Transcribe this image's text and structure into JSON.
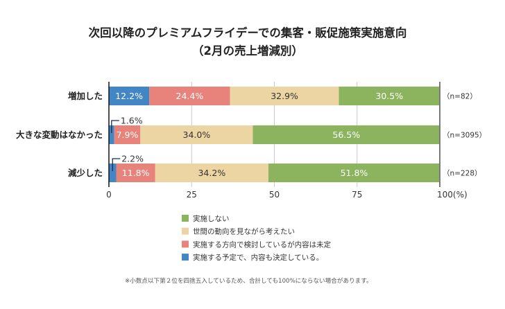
{
  "chart_data": {
    "type": "bar",
    "orientation": "horizontal",
    "stacked": true,
    "title": "次回以降のプレミアムフライデーでの集客・販促施策実施意向",
    "subtitle": "（2月の売上増減別）",
    "categories": [
      "増加した",
      "大きな変動はなかった",
      "減少した"
    ],
    "n_labels": [
      "（n=82）",
      "（n=3095）",
      "（n=228）"
    ],
    "series": [
      {
        "name": "実施する予定で、内容も決定している。",
        "color": "#4386c6",
        "label_color": "#ffffff",
        "values": [
          12.2,
          1.6,
          2.2
        ],
        "labels": [
          "12.2%",
          "1.6%",
          "2.2%"
        ]
      },
      {
        "name": "実施する方向で検討しているが内容は未定",
        "color": "#e8837b",
        "label_color": "#ffffff",
        "values": [
          24.4,
          7.9,
          11.8
        ],
        "labels": [
          "24.4%",
          "7.9%",
          "11.8%"
        ]
      },
      {
        "name": "世間の動向を見ながら考えたい",
        "color": "#ecd5a3",
        "label_color": "#333333",
        "values": [
          32.9,
          34.0,
          34.2
        ],
        "labels": [
          "32.9%",
          "34.0%",
          "34.2%"
        ]
      },
      {
        "name": "実施しない",
        "color": "#8cb35e",
        "label_color": "#ffffff",
        "values": [
          30.5,
          56.5,
          51.8
        ],
        "labels": [
          "30.5%",
          "56.5%",
          "51.8%"
        ]
      }
    ],
    "xlim": [
      0,
      100
    ],
    "xticks": [
      0,
      25,
      50,
      75,
      100
    ],
    "xtick_labels": [
      "0",
      "25",
      "50",
      "75",
      "100(%)"
    ],
    "xlabel": "",
    "ylabel": "",
    "grid": true,
    "legend_order": [
      3,
      2,
      1,
      0
    ],
    "legend_position": "bottom",
    "footnote": "※小数点以下第２位を四捨五入しているため、合計しても100%にならない場合があります。"
  }
}
